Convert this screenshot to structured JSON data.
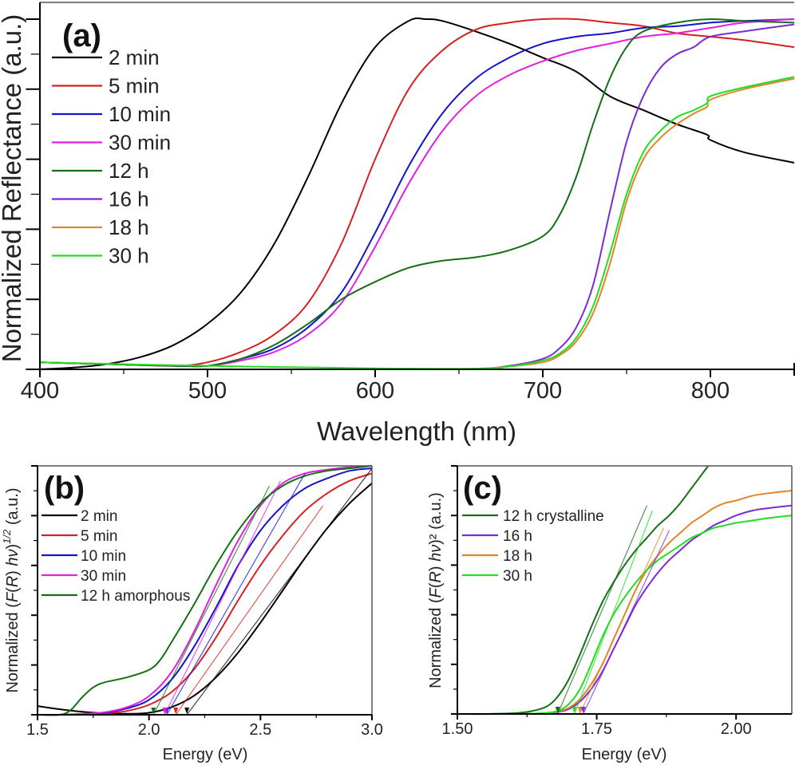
{
  "chart_data": [
    {
      "panel": "a",
      "type": "line",
      "panel_label": "(a)",
      "xlabel": "Wavelength (nm)",
      "ylabel": "Normalized Reflectance (a.u.)",
      "xlim": [
        400,
        850
      ],
      "ylim": [
        0,
        1.0
      ],
      "xticks": [
        400,
        500,
        600,
        700,
        800
      ],
      "yticks_labeled": false,
      "legend_position": "top-left",
      "series": [
        {
          "name": "2 min",
          "color": "#000000",
          "x": [
            400,
            420,
            440,
            460,
            480,
            500,
            520,
            540,
            560,
            580,
            600,
            620,
            630,
            640,
            660,
            680,
            700,
            720,
            740,
            760,
            780,
            798,
            800,
            820,
            850
          ],
          "y": [
            0.0,
            0.005,
            0.015,
            0.035,
            0.07,
            0.13,
            0.22,
            0.36,
            0.55,
            0.76,
            0.92,
            0.995,
            1.0,
            0.995,
            0.965,
            0.93,
            0.89,
            0.85,
            0.78,
            0.74,
            0.7,
            0.67,
            0.655,
            0.62,
            0.59
          ]
        },
        {
          "name": "5 min",
          "color": "#d62020",
          "x": [
            400,
            440,
            480,
            500,
            520,
            540,
            560,
            580,
            600,
            620,
            640,
            660,
            680,
            700,
            720,
            740,
            760,
            780,
            800,
            820,
            850
          ],
          "y": [
            0.02,
            0.015,
            0.01,
            0.02,
            0.05,
            0.1,
            0.19,
            0.36,
            0.6,
            0.8,
            0.91,
            0.97,
            0.99,
            1.0,
            1.0,
            0.99,
            0.98,
            0.96,
            0.95,
            0.94,
            0.92
          ]
        },
        {
          "name": "10 min",
          "color": "#1414c8",
          "x": [
            400,
            440,
            480,
            500,
            520,
            540,
            560,
            580,
            600,
            620,
            640,
            660,
            680,
            700,
            720,
            740,
            760,
            780,
            800,
            820,
            850
          ],
          "y": [
            0.02,
            0.015,
            0.01,
            0.01,
            0.03,
            0.06,
            0.12,
            0.22,
            0.39,
            0.58,
            0.73,
            0.83,
            0.89,
            0.93,
            0.95,
            0.96,
            0.975,
            0.98,
            0.99,
            0.995,
            1.0
          ]
        },
        {
          "name": "30 min",
          "color": "#e020e0",
          "x": [
            400,
            440,
            480,
            500,
            520,
            540,
            560,
            580,
            600,
            620,
            640,
            660,
            680,
            700,
            720,
            740,
            760,
            780,
            800,
            820,
            850
          ],
          "y": [
            0.02,
            0.015,
            0.01,
            0.01,
            0.025,
            0.05,
            0.1,
            0.19,
            0.35,
            0.53,
            0.68,
            0.78,
            0.84,
            0.88,
            0.91,
            0.93,
            0.95,
            0.96,
            0.975,
            0.99,
            1.0
          ]
        },
        {
          "name": "12 h",
          "color": "#157015",
          "x": [
            400,
            440,
            480,
            500,
            520,
            540,
            560,
            580,
            600,
            620,
            640,
            660,
            680,
            700,
            710,
            720,
            730,
            740,
            750,
            760,
            780,
            800,
            820,
            850
          ],
          "y": [
            0.02,
            0.015,
            0.01,
            0.01,
            0.03,
            0.07,
            0.13,
            0.2,
            0.25,
            0.29,
            0.31,
            0.32,
            0.34,
            0.38,
            0.44,
            0.55,
            0.7,
            0.83,
            0.92,
            0.965,
            0.99,
            1.0,
            0.995,
            0.99
          ]
        },
        {
          "name": "16 h",
          "color": "#7a2bd6",
          "x": [
            400,
            500,
            600,
            660,
            680,
            700,
            710,
            720,
            730,
            740,
            750,
            760,
            770,
            780,
            790,
            800,
            820,
            850
          ],
          "y": [
            0.0,
            0.0,
            0.0,
            0.002,
            0.01,
            0.03,
            0.06,
            0.12,
            0.24,
            0.45,
            0.65,
            0.78,
            0.86,
            0.9,
            0.92,
            0.95,
            0.965,
            0.985
          ]
        },
        {
          "name": "18 h",
          "color": "#e0862a",
          "x": [
            400,
            500,
            600,
            660,
            680,
            700,
            710,
            720,
            730,
            740,
            750,
            760,
            770,
            780,
            790,
            798,
            800,
            820,
            850
          ],
          "y": [
            0.0,
            0.0,
            0.0,
            0.002,
            0.008,
            0.02,
            0.04,
            0.08,
            0.16,
            0.3,
            0.48,
            0.6,
            0.66,
            0.7,
            0.73,
            0.75,
            0.77,
            0.8,
            0.83
          ]
        },
        {
          "name": "30 h",
          "color": "#22dd22",
          "x": [
            400,
            500,
            600,
            660,
            680,
            700,
            710,
            720,
            730,
            740,
            750,
            760,
            770,
            780,
            790,
            798,
            800,
            820,
            850
          ],
          "y": [
            0.02,
            0.01,
            0.003,
            0.002,
            0.008,
            0.025,
            0.045,
            0.09,
            0.18,
            0.33,
            0.5,
            0.62,
            0.68,
            0.72,
            0.74,
            0.76,
            0.78,
            0.805,
            0.835
          ]
        }
      ]
    },
    {
      "panel": "b",
      "type": "line",
      "panel_label": "(b)",
      "xlabel": "Energy (eV)",
      "ylabel_parts": [
        "Normalized (",
        "F",
        "(",
        "R",
        ") ",
        "hν",
        ")",
        "1/2",
        " (a.u.)"
      ],
      "xlim": [
        1.5,
        3.0
      ],
      "ylim": [
        0,
        1.0
      ],
      "xticks": [
        "1.5",
        "2.0",
        "2.5",
        "3.0"
      ],
      "xtick_values": [
        1.5,
        2.0,
        2.5,
        3.0
      ],
      "yticks_labeled": false,
      "legend_position": "top-left",
      "series": [
        {
          "name": "2 min",
          "color": "#000000",
          "x": [
            1.5,
            1.6,
            1.7,
            1.8,
            1.9,
            2.0,
            2.1,
            2.2,
            2.3,
            2.4,
            2.5,
            2.6,
            2.7,
            2.8,
            2.9,
            3.0
          ],
          "y": [
            0.035,
            0.022,
            0.012,
            0.006,
            0.004,
            0.008,
            0.03,
            0.075,
            0.15,
            0.25,
            0.37,
            0.5,
            0.63,
            0.75,
            0.85,
            0.93
          ]
        },
        {
          "name": "5 min",
          "color": "#d62020",
          "x": [
            1.5,
            1.6,
            1.7,
            1.8,
            1.9,
            2.0,
            2.1,
            2.2,
            2.3,
            2.4,
            2.5,
            2.6,
            2.7,
            2.8,
            2.9,
            3.0
          ],
          "y": [
            0.0,
            0.0,
            0.002,
            0.005,
            0.015,
            0.04,
            0.09,
            0.18,
            0.31,
            0.46,
            0.6,
            0.72,
            0.82,
            0.89,
            0.94,
            0.97
          ]
        },
        {
          "name": "10 min",
          "color": "#1414c8",
          "x": [
            1.5,
            1.6,
            1.7,
            1.8,
            1.9,
            2.0,
            2.1,
            2.2,
            2.3,
            2.4,
            2.5,
            2.6,
            2.7,
            2.8,
            2.9,
            3.0
          ],
          "y": [
            0.0,
            0.0,
            0.003,
            0.008,
            0.025,
            0.06,
            0.14,
            0.27,
            0.43,
            0.6,
            0.74,
            0.84,
            0.91,
            0.95,
            0.98,
            0.99
          ]
        },
        {
          "name": "30 min",
          "color": "#e020e0",
          "x": [
            1.5,
            1.6,
            1.7,
            1.8,
            1.9,
            2.0,
            2.1,
            2.2,
            2.3,
            2.4,
            2.5,
            2.6,
            2.7,
            2.8,
            2.9,
            3.0
          ],
          "y": [
            0.0,
            0.0,
            0.004,
            0.01,
            0.03,
            0.075,
            0.17,
            0.33,
            0.52,
            0.7,
            0.84,
            0.93,
            0.97,
            0.985,
            0.995,
            1.0
          ]
        },
        {
          "name": "12 h amorphous",
          "color": "#157015",
          "x": [
            1.5,
            1.6,
            1.65,
            1.7,
            1.75,
            1.8,
            1.9,
            2.0,
            2.05,
            2.1,
            2.2,
            2.3,
            2.4,
            2.5,
            2.6,
            2.7,
            2.8,
            2.9,
            3.0
          ],
          "y": [
            0.0,
            0.0,
            0.02,
            0.07,
            0.11,
            0.13,
            0.15,
            0.18,
            0.22,
            0.29,
            0.44,
            0.6,
            0.74,
            0.85,
            0.92,
            0.96,
            0.98,
            0.99,
            1.0
          ]
        }
      ],
      "tangent_intercepts_eV": [
        {
          "name": "2 min",
          "color": "#000000",
          "x0": 2.17,
          "x1": 3.0,
          "y1": 0.99
        },
        {
          "name": "5 min",
          "color": "#d62020",
          "x0": 2.12,
          "x1": 2.78,
          "y1": 0.84
        },
        {
          "name": "10 min",
          "color": "#1414c8",
          "x0": 2.08,
          "x1": 2.7,
          "y1": 0.97
        },
        {
          "name": "30 min",
          "color": "#e020e0",
          "x0": 2.07,
          "x1": 2.59,
          "y1": 0.94
        },
        {
          "name": "12 h amorphous",
          "color": "#157015",
          "x0": 2.02,
          "x1": 2.54,
          "y1": 0.92
        }
      ]
    },
    {
      "panel": "c",
      "type": "line",
      "panel_label": "(c)",
      "xlabel": "Energy (eV)",
      "ylabel_parts": [
        "Normalized (",
        "F",
        "(",
        "R",
        ") ",
        "hν",
        ")²",
        "",
        " (a.u.)"
      ],
      "xlim": [
        1.5,
        2.1
      ],
      "ylim": [
        0,
        1.0
      ],
      "xticks": [
        "1.50",
        "1.75",
        "2.00"
      ],
      "xtick_values": [
        1.5,
        1.75,
        2.0
      ],
      "yticks_labeled": false,
      "legend_position": "top-left",
      "series": [
        {
          "name": "12 h crystalline",
          "color": "#157015",
          "x": [
            1.5,
            1.55,
            1.6,
            1.63,
            1.66,
            1.68,
            1.7,
            1.72,
            1.74,
            1.76,
            1.78,
            1.8,
            1.82,
            1.84,
            1.86,
            1.88,
            1.9,
            1.92,
            1.94,
            1.95
          ],
          "y": [
            0.0,
            0.0,
            0.003,
            0.01,
            0.03,
            0.07,
            0.14,
            0.24,
            0.35,
            0.45,
            0.53,
            0.6,
            0.66,
            0.71,
            0.76,
            0.8,
            0.85,
            0.91,
            0.97,
            1.0
          ]
        },
        {
          "name": "16 h",
          "color": "#7a2bd6",
          "x": [
            1.5,
            1.6,
            1.65,
            1.68,
            1.7,
            1.72,
            1.74,
            1.76,
            1.78,
            1.8,
            1.82,
            1.84,
            1.86,
            1.88,
            1.9,
            1.92,
            1.94,
            1.96,
            1.98,
            2.0,
            2.03,
            2.06,
            2.1
          ],
          "y": [
            0.0,
            0.0,
            0.002,
            0.008,
            0.02,
            0.05,
            0.1,
            0.17,
            0.26,
            0.35,
            0.44,
            0.51,
            0.57,
            0.62,
            0.66,
            0.7,
            0.73,
            0.76,
            0.78,
            0.8,
            0.82,
            0.83,
            0.84
          ]
        },
        {
          "name": "18 h",
          "color": "#e0862a",
          "x": [
            1.5,
            1.6,
            1.65,
            1.68,
            1.7,
            1.72,
            1.74,
            1.76,
            1.78,
            1.8,
            1.82,
            1.84,
            1.86,
            1.88,
            1.9,
            1.92,
            1.94,
            1.96,
            1.98,
            2.0,
            2.03,
            2.06,
            2.1
          ],
          "y": [
            0.0,
            0.0,
            0.002,
            0.01,
            0.025,
            0.06,
            0.12,
            0.2,
            0.3,
            0.4,
            0.5,
            0.58,
            0.64,
            0.69,
            0.73,
            0.77,
            0.8,
            0.83,
            0.85,
            0.86,
            0.88,
            0.89,
            0.9
          ]
        },
        {
          "name": "30 h",
          "color": "#22dd22",
          "x": [
            1.5,
            1.6,
            1.65,
            1.68,
            1.7,
            1.72,
            1.74,
            1.76,
            1.78,
            1.8,
            1.82,
            1.84,
            1.86,
            1.88,
            1.9,
            1.92,
            1.94,
            1.96,
            1.98,
            2.0,
            2.03,
            2.06,
            2.1
          ],
          "y": [
            0.0,
            0.0,
            0.003,
            0.012,
            0.04,
            0.1,
            0.2,
            0.31,
            0.4,
            0.47,
            0.53,
            0.58,
            0.62,
            0.65,
            0.68,
            0.71,
            0.73,
            0.75,
            0.76,
            0.77,
            0.78,
            0.79,
            0.8
          ]
        }
      ],
      "tangent_intercepts_eV": [
        {
          "name": "12 h crystalline",
          "color": "#157015",
          "x0": 1.68,
          "x1": 1.84,
          "y1": 0.84
        },
        {
          "name": "30 h",
          "color": "#22dd22",
          "x0": 1.71,
          "x1": 1.85,
          "y1": 0.82
        },
        {
          "name": "18 h",
          "color": "#e0862a",
          "x0": 1.72,
          "x1": 1.87,
          "y1": 0.75
        },
        {
          "name": "16 h",
          "color": "#7a2bd6",
          "x0": 1.726,
          "x1": 1.88,
          "y1": 0.74
        }
      ]
    }
  ]
}
